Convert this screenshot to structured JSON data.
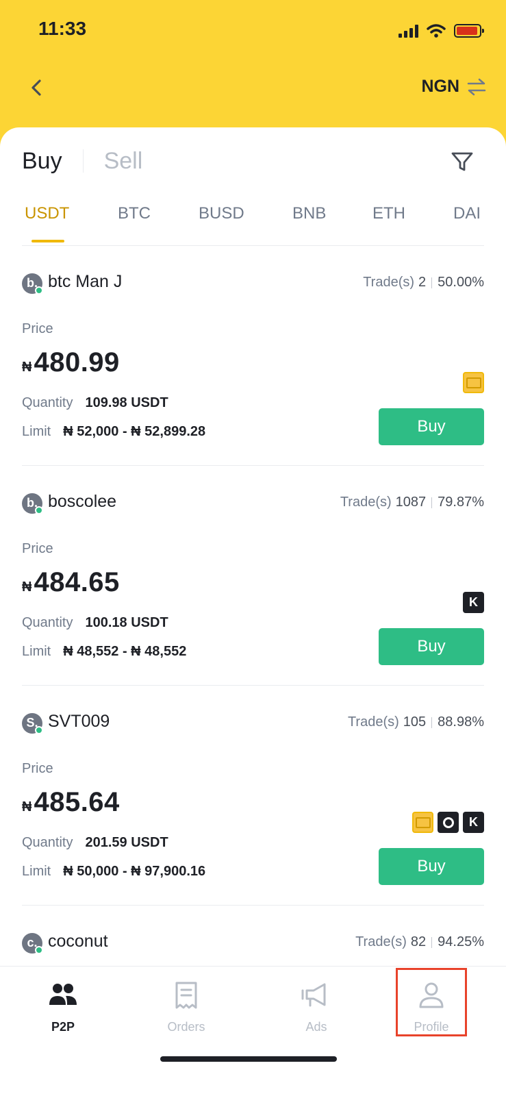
{
  "status_bar": {
    "time": "11:33"
  },
  "nav": {
    "currency": "NGN"
  },
  "side_tabs": [
    {
      "label": "Buy",
      "active": true
    },
    {
      "label": "Sell",
      "active": false
    }
  ],
  "asset_tabs": [
    {
      "label": "USDT",
      "active": true
    },
    {
      "label": "BTC",
      "active": false
    },
    {
      "label": "BUSD",
      "active": false
    },
    {
      "label": "BNB",
      "active": false
    },
    {
      "label": "ETH",
      "active": false
    },
    {
      "label": "DAI",
      "active": false
    }
  ],
  "labels": {
    "price": "Price",
    "quantity": "Quantity",
    "limit": "Limit",
    "trades": "Trade(s)",
    "buy": "Buy",
    "currency_symbol": "₦"
  },
  "offers": [
    {
      "initial": "b.",
      "merchant": "btc Man J",
      "trades": "2",
      "completion": "50.00%",
      "price": "480.99",
      "quantity": "109.98 USDT",
      "limit": "₦ 52,000 - ₦ 52,899.28",
      "payment_methods": [
        "bank-card"
      ]
    },
    {
      "initial": "b.",
      "merchant": "boscolee",
      "trades": "1087",
      "completion": "79.87%",
      "price": "484.65",
      "quantity": "100.18 USDT",
      "limit": "₦ 48,552 - ₦ 48,552",
      "payment_methods": [
        "kuda"
      ]
    },
    {
      "initial": "S.",
      "merchant": "SVT009",
      "trades": "105",
      "completion": "88.98%",
      "price": "485.64",
      "quantity": "201.59 USDT",
      "limit": "₦ 50,000 - ₦ 97,900.16",
      "payment_methods": [
        "bank-card",
        "chipper",
        "kuda"
      ]
    },
    {
      "initial": "c.",
      "merchant": "coconut",
      "trades": "82",
      "completion": "94.25%"
    }
  ],
  "bottom_nav": [
    {
      "label": "P2P",
      "icon": "users-icon",
      "active": true
    },
    {
      "label": "Orders",
      "icon": "receipt-icon",
      "active": false
    },
    {
      "label": "Ads",
      "icon": "megaphone-icon",
      "active": false
    },
    {
      "label": "Profile",
      "icon": "person-icon",
      "active": false
    }
  ],
  "colors": {
    "brand_yellow": "#fcd535",
    "accent_gold": "#c99400",
    "buy_green": "#2ebd85",
    "highlight_red": "#e8432b"
  }
}
